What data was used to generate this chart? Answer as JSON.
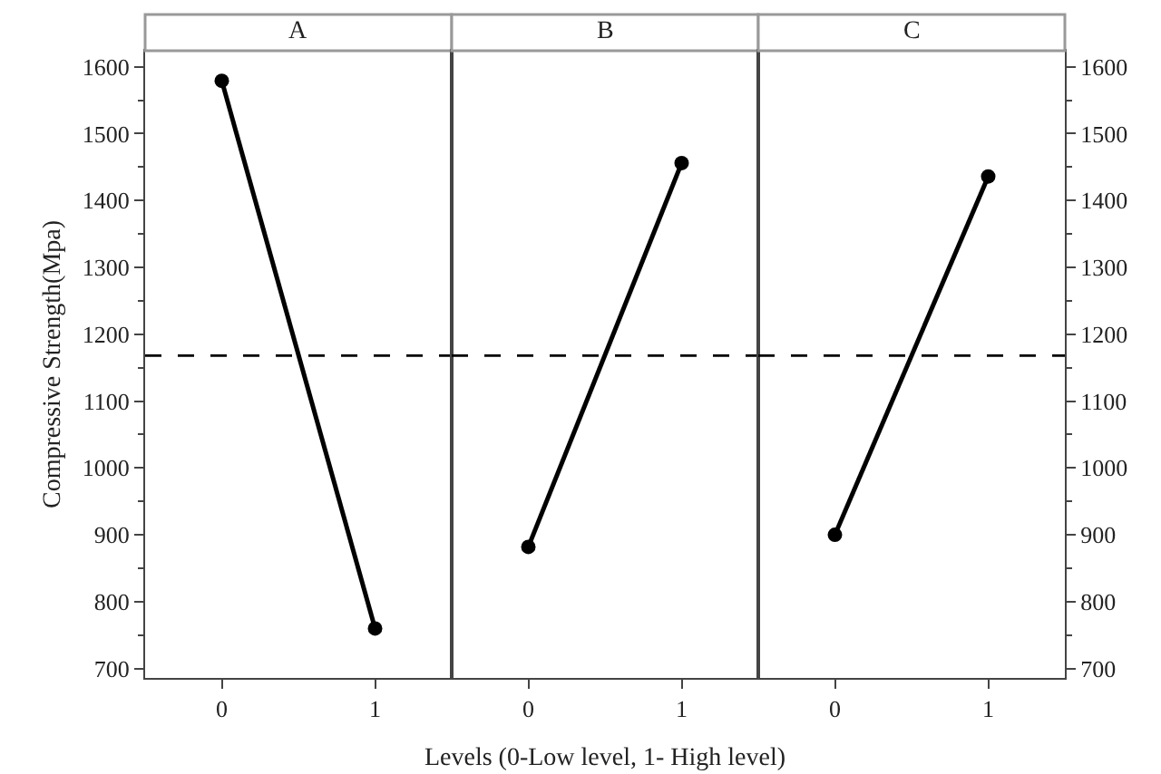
{
  "chart_data": [
    {
      "type": "line",
      "title": "A",
      "ylabel": "Compressive Strength(Mpa)",
      "categories": [
        "0",
        "1"
      ],
      "ylim": [
        686,
        1624
      ],
      "yticks": [
        700,
        {
          "value": 750,
          "label": null
        },
        800,
        {
          "value": 850,
          "label": null
        },
        900,
        {
          "value": 950,
          "label": null
        },
        1000,
        {
          "value": 1050,
          "label": null
        },
        1100,
        {
          "value": 1150,
          "label": null
        },
        1200,
        {
          "value": 1250,
          "label": null
        },
        1300,
        {
          "value": 1350,
          "label": null
        },
        1400,
        {
          "value": 1450,
          "label": null
        },
        1500,
        {
          "value": 1550,
          "label": null
        },
        1600
      ],
      "marker": "circle",
      "line_style": "solid",
      "grid": false,
      "series": [
        {
          "color": "#000000",
          "values": [
            1579,
            760
          ]
        }
      ],
      "ref_lines": [
        {
          "axis": "y",
          "value": 1168,
          "line_style": "dashed",
          "color": "#000000"
        }
      ]
    },
    {
      "type": "line",
      "title": "B",
      "xlabel": "Levels (0-Low level, 1- High level)",
      "categories": [
        "0",
        "1"
      ],
      "ylim": [
        686,
        1624
      ],
      "tick_labels": "x",
      "marker": "circle",
      "line_style": "solid",
      "grid": false,
      "series": [
        {
          "color": "#000000",
          "values": [
            882,
            1456
          ]
        }
      ],
      "ref_lines": [
        {
          "axis": "y",
          "value": 1168,
          "line_style": "dashed",
          "color": "#000000"
        }
      ]
    },
    {
      "type": "line",
      "title": "C",
      "categories": [
        "0",
        "1"
      ],
      "y2lim": [
        686,
        1624
      ],
      "y2ticks": [
        700,
        {
          "value": 750,
          "label": null
        },
        800,
        {
          "value": 850,
          "label": null
        },
        900,
        {
          "value": 950,
          "label": null
        },
        1000,
        {
          "value": 1050,
          "label": null
        },
        1100,
        {
          "value": 1150,
          "label": null
        },
        1200,
        {
          "value": 1250,
          "label": null
        },
        1300,
        {
          "value": 1350,
          "label": null
        },
        1400,
        {
          "value": 1450,
          "label": null
        },
        1500,
        {
          "value": 1550,
          "label": null
        },
        1600
      ],
      "marker": "circle",
      "line_style": "solid",
      "grid": false,
      "series": [
        {
          "color": "#000000",
          "values": [
            900,
            1436
          ],
          "axis": "y2"
        }
      ],
      "ref_lines": [
        {
          "axis": "y2",
          "value": 1168,
          "line_style": "dashed",
          "color": "#000000"
        }
      ]
    }
  ]
}
